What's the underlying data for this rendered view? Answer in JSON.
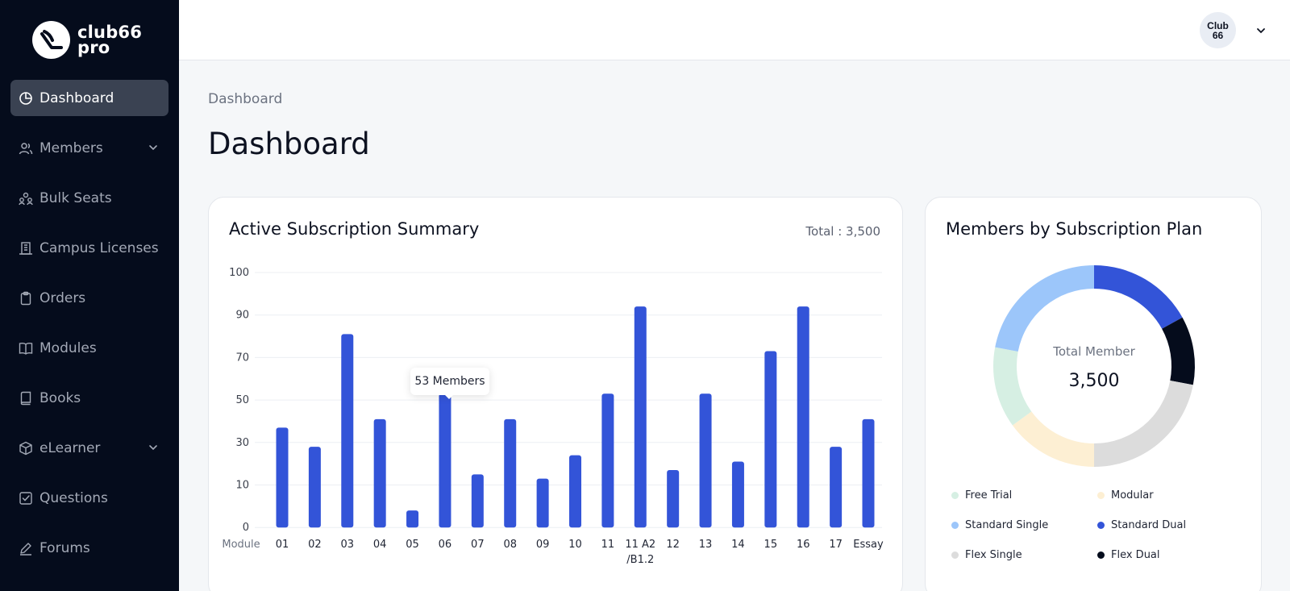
{
  "brand": {
    "name_line1": "club66",
    "name_line2": "pro"
  },
  "sidebar": {
    "items": [
      {
        "label": "Dashboard",
        "icon": "pie-chart-icon",
        "active": true,
        "expandable": false
      },
      {
        "label": "Members",
        "icon": "users-icon",
        "active": false,
        "expandable": true
      },
      {
        "label": "Bulk Seats",
        "icon": "group-icon",
        "active": false,
        "expandable": false
      },
      {
        "label": "Campus Licenses",
        "icon": "building-icon",
        "active": false,
        "expandable": false
      },
      {
        "label": "Orders",
        "icon": "clipboard-icon",
        "active": false,
        "expandable": false
      },
      {
        "label": "Modules",
        "icon": "open-book-icon",
        "active": false,
        "expandable": false
      },
      {
        "label": "Books",
        "icon": "book-icon",
        "active": false,
        "expandable": false
      },
      {
        "label": "eLearner",
        "icon": "cube-icon",
        "active": false,
        "expandable": true
      },
      {
        "label": "Questions",
        "icon": "check-square-icon",
        "active": false,
        "expandable": false
      },
      {
        "label": "Forums",
        "icon": "pen-icon",
        "active": false,
        "expandable": false
      }
    ]
  },
  "topbar": {
    "avatar_line1": "Club",
    "avatar_line2": "66"
  },
  "main": {
    "breadcrumb": "Dashboard",
    "title": "Dashboard"
  },
  "bar_card": {
    "title": "Active Subscription Summary",
    "total": "Total : 3,500",
    "x_axis_name": "Module",
    "tooltip": "53 Members"
  },
  "donut_card": {
    "title": "Members by Subscription Plan",
    "center_label": "Total Member",
    "center_value": "3,500"
  },
  "colors": {
    "accent": "#3354d8",
    "sidebar_bg": "#050c1c",
    "active_item": "#3a4252"
  },
  "chart_data": [
    {
      "type": "bar",
      "title": "Active Subscription Summary",
      "xlabel": "Module",
      "categories": [
        "01",
        "02",
        "03",
        "04",
        "05",
        "06",
        "07",
        "08",
        "09",
        "10",
        "11",
        "11 A2 /B1.2",
        "12",
        "13",
        "14",
        "15",
        "16",
        "17",
        "Essay"
      ],
      "values": [
        37,
        28,
        81,
        41,
        4,
        53,
        15,
        41,
        13,
        24,
        53,
        92,
        17,
        53,
        21,
        73,
        92,
        28,
        41
      ],
      "y_ticks": [
        0,
        10,
        30,
        50,
        70,
        90,
        100
      ],
      "grid": true,
      "color": "#3354d8"
    },
    {
      "type": "pie",
      "title": "Members by Subscription Plan",
      "donut": true,
      "total_label": "Total Member",
      "total": 3500,
      "slices": [
        {
          "name": "Standard Dual",
          "value": 17,
          "color": "#3354d8"
        },
        {
          "name": "Flex Dual",
          "value": 11,
          "color": "#050c1c"
        },
        {
          "name": "Flex Single",
          "value": 22,
          "color": "#dcdcdc"
        },
        {
          "name": "Modular",
          "value": 15,
          "color": "#fdefd3"
        },
        {
          "name": "Free Trial",
          "value": 13,
          "color": "#d6efe3"
        },
        {
          "name": "Standard Single",
          "value": 22,
          "color": "#9cc6fa"
        }
      ],
      "legend": [
        {
          "name": "Free Trial",
          "color": "#d6efe3"
        },
        {
          "name": "Modular",
          "color": "#fdefd3"
        },
        {
          "name": "Standard Single",
          "color": "#9cc6fa"
        },
        {
          "name": "Standard Dual",
          "color": "#3354d8"
        },
        {
          "name": "Flex Single",
          "color": "#dcdcdc"
        },
        {
          "name": "Flex Dual",
          "color": "#050c1c"
        }
      ],
      "legend_placement": "bottom"
    }
  ]
}
